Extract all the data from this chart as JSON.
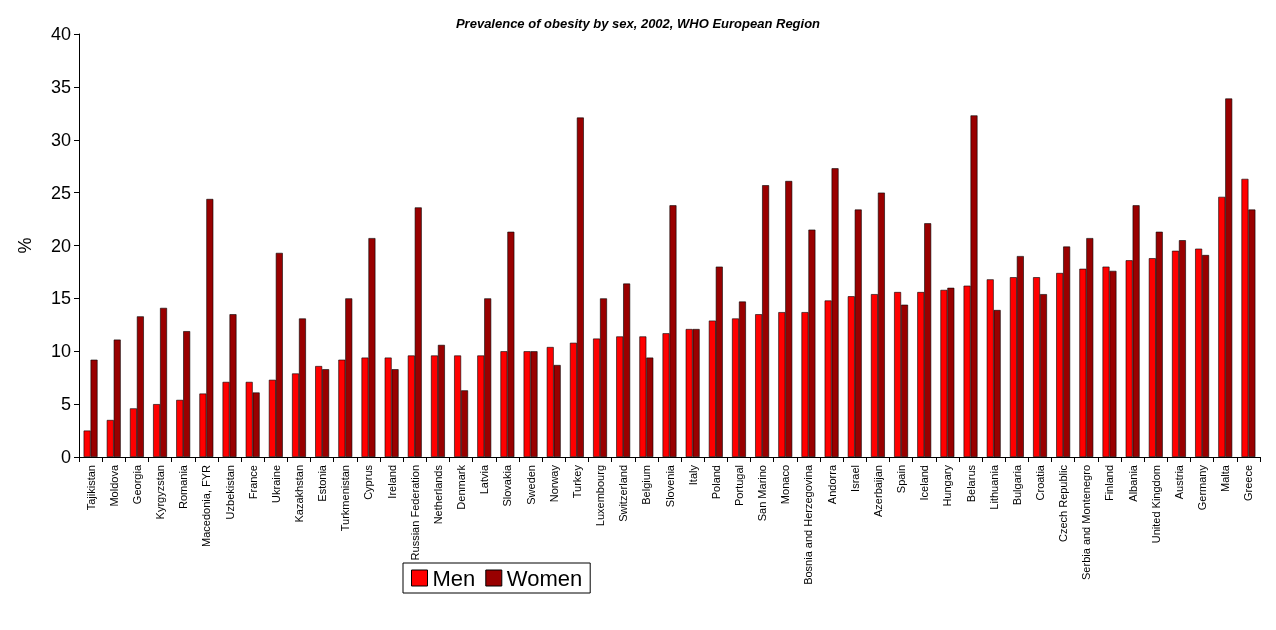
{
  "chart_data": {
    "type": "bar",
    "title": "Prevalence of obesity by sex, 2002, WHO European Region",
    "ylabel": "%",
    "categories": [
      "Tajikistan",
      "Moldova",
      "Georgia",
      "Kyrgyzstan",
      "Romania",
      "Macedonia, FYR",
      "Uzbekistan",
      "France",
      "Ukraine",
      "Kazakhstan",
      "Estonia",
      "Turkmenistan",
      "Cyprus",
      "Ireland",
      "Russian Federation",
      "Netherlands",
      "Denmark",
      "Latvia",
      "Slovakia",
      "Sweden",
      "Norway",
      "Turkey",
      "Luxembourg",
      "Switzerland",
      "Belgium",
      "Slovenia",
      "Italy",
      "Poland",
      "Portugal",
      "San Marino",
      "Monaco",
      "Bosnia and Herzegovina",
      "Andorra",
      "Israel",
      "Azerbaijan",
      "Spain",
      "Iceland",
      "Hungary",
      "Belarus",
      "Lithuania",
      "Bulgaria",
      "Croatia",
      "Czech Republic",
      "Serbia and Montenegro",
      "Finland",
      "Albania",
      "United Kingdom",
      "Austria",
      "Germany",
      "Malta",
      "Greece"
    ],
    "series": [
      {
        "name": "Men",
        "color": "#ff0000",
        "values": [
          2.5,
          3.5,
          4.6,
          5.0,
          5.4,
          6.0,
          7.1,
          7.1,
          7.3,
          7.9,
          8.6,
          9.2,
          9.4,
          9.4,
          9.6,
          9.6,
          9.6,
          9.6,
          10.0,
          10.0,
          10.4,
          10.8,
          11.2,
          11.4,
          11.4,
          11.7,
          12.1,
          12.9,
          13.1,
          13.5,
          13.7,
          13.7,
          14.8,
          15.2,
          15.4,
          15.6,
          15.6,
          15.8,
          16.2,
          16.8,
          17.0,
          17.0,
          17.4,
          17.8,
          18.0,
          18.6,
          18.8,
          19.5,
          19.7,
          24.6,
          26.3
        ]
      },
      {
        "name": "Women",
        "color": "#990000",
        "values": [
          9.2,
          11.1,
          13.3,
          14.1,
          11.9,
          24.4,
          13.5,
          6.1,
          19.3,
          13.1,
          8.3,
          15.0,
          20.7,
          8.3,
          23.6,
          10.6,
          6.3,
          15.0,
          21.3,
          10.0,
          8.7,
          32.1,
          15.0,
          16.4,
          9.4,
          23.8,
          12.1,
          18.0,
          14.7,
          25.7,
          26.1,
          21.5,
          27.3,
          23.4,
          25.0,
          14.4,
          22.1,
          16.0,
          32.3,
          13.9,
          19.0,
          15.4,
          19.9,
          20.7,
          17.6,
          23.8,
          21.3,
          20.5,
          19.1,
          33.9,
          23.4
        ]
      }
    ],
    "ylim": [
      0,
      40
    ],
    "yticks": [
      0,
      5,
      10,
      15,
      20,
      25,
      30,
      35,
      40
    ],
    "grid": false,
    "legend": "bottom"
  }
}
